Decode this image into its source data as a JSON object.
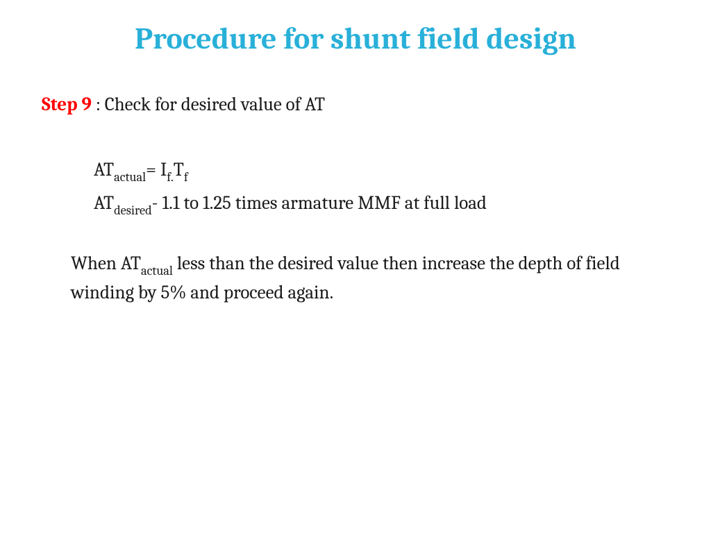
{
  "title": {
    "text": "Procedure for shunt field design",
    "color": "#29b0d9"
  },
  "step": {
    "label": "Step 9",
    "label_color": "#ff0000",
    "colon": " : ",
    "desc": " Check for desired value of AT"
  },
  "formula1": {
    "lhs_base": "AT",
    "lhs_sub": "actual",
    "eq": "= I",
    "isub": "f.",
    "t": "T",
    "tsub": "f"
  },
  "formula2": {
    "lhs_base": "AT",
    "lhs_sub": "desired",
    "rest": "-  1.1  to 1.25 times armature MMF at full load"
  },
  "para": {
    "p1a": "When AT",
    "p1sub": "actual",
    "p1b": "  less than the desired value then increase the depth of field winding by 5% and proceed again."
  }
}
